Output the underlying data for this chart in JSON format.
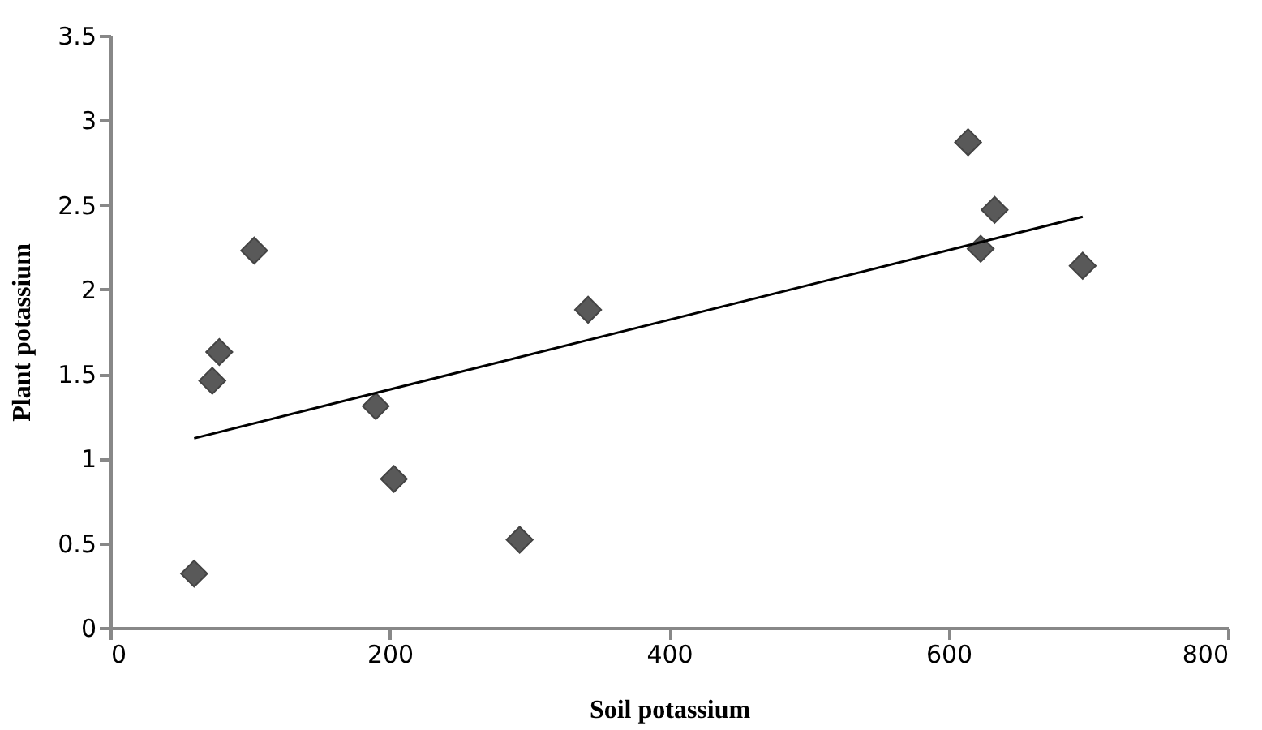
{
  "chart_data": {
    "type": "scatter",
    "xlabel": "Soil potassium",
    "ylabel": "Plant potassium",
    "grid": false,
    "xlim": [
      0,
      800
    ],
    "xticks": [
      0,
      200,
      400,
      600,
      800
    ],
    "ylim": [
      0,
      3.5
    ],
    "yticks": [
      0,
      0.5,
      1,
      1.5,
      2,
      2.5,
      3,
      3.5
    ],
    "series": [
      {
        "type": "scatter",
        "marker": "diamond",
        "color": "#595959",
        "x": [
          60,
          73,
          78,
          103,
          190,
          203,
          293,
          342,
          614,
          623,
          633,
          696
        ],
        "values": [
          0.32,
          1.46,
          1.63,
          2.23,
          1.31,
          0.88,
          0.52,
          1.88,
          2.87,
          2.24,
          2.47,
          2.14
        ]
      },
      {
        "type": "line",
        "marker": "none",
        "color": "#000000",
        "line_style": "solid",
        "x": [
          60,
          696
        ],
        "values": [
          1.12,
          2.43
        ]
      }
    ]
  }
}
